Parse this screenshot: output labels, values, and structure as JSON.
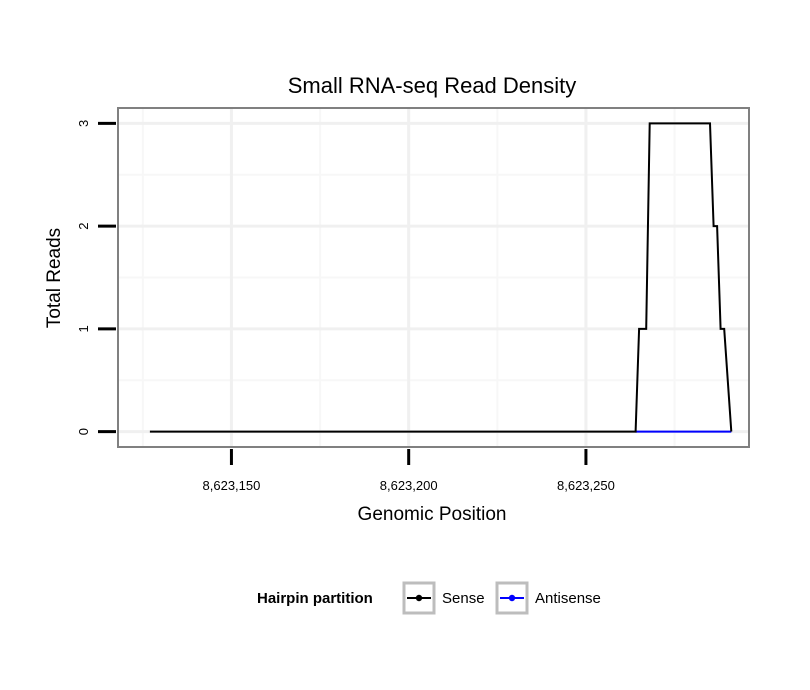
{
  "chart_data": {
    "type": "line",
    "title": "Small RNA-seq Read Density",
    "xlabel": "Genomic Position",
    "ylabel": "Total Reads",
    "xlim": [
      8623118,
      8623296
    ],
    "ylim": [
      -0.15,
      3.15
    ],
    "x_ticks": [
      {
        "value": 8623150,
        "label": "8,623,150"
      },
      {
        "value": 8623200,
        "label": "8,623,200"
      },
      {
        "value": 8623250,
        "label": "8,623,250"
      }
    ],
    "y_ticks": [
      {
        "value": 0,
        "label": "0"
      },
      {
        "value": 1,
        "label": "1"
      },
      {
        "value": 2,
        "label": "2"
      },
      {
        "value": 3,
        "label": "3"
      }
    ],
    "grid": true,
    "legend": {
      "title": "Hairpin partition",
      "position": "bottom",
      "entries": [
        {
          "name": "Sense",
          "color": "#000000"
        },
        {
          "name": "Antisense",
          "color": "#0000ff"
        }
      ]
    },
    "series": [
      {
        "name": "Sense",
        "color": "#000000",
        "x": [
          8623127,
          8623241,
          8623264,
          8623265,
          8623267,
          8623268,
          8623285,
          8623286,
          8623287,
          8623288,
          8623289,
          8623291
        ],
        "y": [
          0,
          0,
          0,
          1,
          1,
          3,
          3,
          2,
          2,
          1,
          1,
          0
        ]
      },
      {
        "name": "Antisense",
        "color": "#0000ff",
        "x": [
          8623264,
          8623291
        ],
        "y": [
          0,
          0
        ]
      }
    ]
  }
}
